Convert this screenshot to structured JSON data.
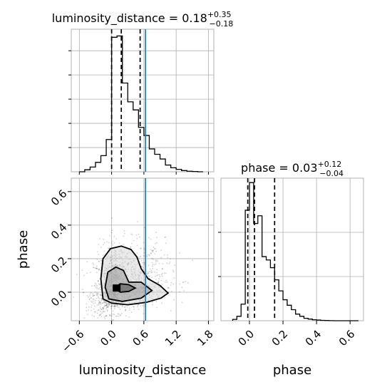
{
  "chart_data": [
    {
      "type": "histogram",
      "panel": "top-left",
      "title": {
        "label": "luminosity_distance",
        "median": "0.18",
        "plus": "+0.35",
        "minus": "−0.18"
      },
      "xlim": [
        -0.75,
        1.9
      ],
      "bin_edges": [
        -0.6,
        -0.5,
        -0.4,
        -0.3,
        -0.2,
        -0.1,
        0.0,
        0.1,
        0.2,
        0.3,
        0.4,
        0.5,
        0.6,
        0.7,
        0.8,
        0.9,
        1.0,
        1.1,
        1.2,
        1.3,
        1.4,
        1.5,
        1.6,
        1.7
      ],
      "counts": [
        0.0,
        1.5,
        3.5,
        7.0,
        12.0,
        24.0,
        100.0,
        101.0,
        66.0,
        52.0,
        46.0,
        33.0,
        27.0,
        17.0,
        13.0,
        9.5,
        5.0,
        3.0,
        1.8,
        0.9,
        0.4,
        0.2,
        0.0
      ],
      "ylim": [
        0,
        106
      ],
      "yticks": [
        18,
        36,
        54,
        72,
        90
      ],
      "quantiles": [
        0.0,
        0.18,
        0.53
      ],
      "truth": 0.63,
      "grid": true
    },
    {
      "type": "scatter-density",
      "panel": "bottom-left",
      "xlabel": "luminosity_distance",
      "ylabel": "phase",
      "xlim": [
        -0.75,
        1.9
      ],
      "ylim": [
        -0.17,
        0.68
      ],
      "xticks": [
        -0.6,
        0.0,
        0.6,
        1.2,
        1.8
      ],
      "xtick_labels": [
        "−0.6",
        "0.0",
        "0.6",
        "1.2",
        "1.8"
      ],
      "yticks": [
        0.0,
        0.2,
        0.4,
        0.6
      ],
      "ytick_labels": [
        "0.0",
        "0.2",
        "0.4",
        "0.6"
      ],
      "peak": {
        "x": 0.1,
        "y": 0.025
      },
      "spread": {
        "x": 0.33,
        "y": 0.1
      },
      "contours": [
        [
          [
            0.05,
            0.025
          ],
          [
            0.16,
            0.0
          ],
          [
            0.32,
            0.005
          ],
          [
            0.44,
            0.025
          ],
          [
            0.32,
            0.045
          ],
          [
            0.16,
            0.05
          ]
        ],
        [
          [
            -0.12,
            0.03
          ],
          [
            -0.05,
            -0.04
          ],
          [
            0.2,
            -0.055
          ],
          [
            0.55,
            -0.035
          ],
          [
            0.75,
            0.01
          ],
          [
            0.55,
            0.06
          ],
          [
            0.32,
            0.06
          ],
          [
            0.22,
            0.13
          ],
          [
            0.08,
            0.15
          ],
          [
            -0.07,
            0.12
          ]
        ],
        [
          [
            -0.2,
            0.08
          ],
          [
            -0.16,
            -0.04
          ],
          [
            0.0,
            -0.065
          ],
          [
            0.3,
            -0.075
          ],
          [
            0.65,
            -0.06
          ],
          [
            0.92,
            -0.035
          ],
          [
            1.05,
            -0.005
          ],
          [
            0.9,
            0.04
          ],
          [
            0.68,
            0.08
          ],
          [
            0.55,
            0.14
          ],
          [
            0.47,
            0.21
          ],
          [
            0.36,
            0.255
          ],
          [
            0.18,
            0.275
          ],
          [
            -0.02,
            0.26
          ],
          [
            -0.16,
            0.2
          ]
        ]
      ],
      "truth_x": 0.63,
      "grid": true
    },
    {
      "type": "histogram",
      "panel": "bottom-right",
      "title": {
        "label": "phase",
        "median": "0.03",
        "plus": "+0.12",
        "minus": "−0.04"
      },
      "xlabel": "phase",
      "xlim": [
        -0.17,
        0.68
      ],
      "xticks": [
        0.0,
        0.2,
        0.4,
        0.6
      ],
      "xtick_labels": [
        "0.0",
        "0.2",
        "0.4",
        "0.6"
      ],
      "bin_edges": [
        -0.1,
        -0.075,
        -0.05,
        -0.025,
        0.0,
        0.025,
        0.05,
        0.075,
        0.1,
        0.125,
        0.15,
        0.175,
        0.2,
        0.225,
        0.25,
        0.275,
        0.3,
        0.325,
        0.35,
        0.375,
        0.4,
        0.425,
        0.45,
        0.475,
        0.5,
        0.525,
        0.55,
        0.575,
        0.6,
        0.625,
        0.65
      ],
      "counts": [
        1.2,
        4.0,
        15.0,
        100.0,
        125.0,
        88.0,
        95.0,
        58.0,
        55.0,
        48.0,
        37.0,
        27.0,
        19.0,
        14.0,
        10.0,
        6.0,
        4.0,
        2.2,
        1.5,
        0.9,
        0.6,
        0.3,
        0.2,
        0.1,
        0.0,
        0.0,
        0.0,
        0.0,
        0.0,
        0.0
      ],
      "ylim": [
        0,
        129
      ],
      "yticks": [
        40,
        80
      ],
      "quantiles": [
        -0.01,
        0.03,
        0.15
      ],
      "grid": true
    }
  ]
}
